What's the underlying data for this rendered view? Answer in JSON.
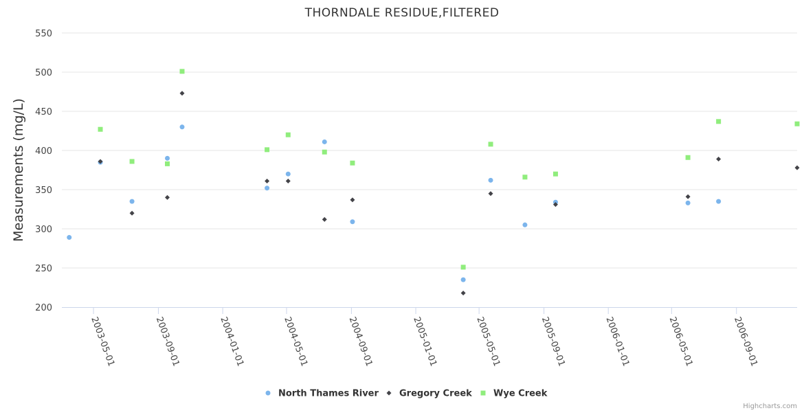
{
  "chart_data": {
    "type": "scatter",
    "title": "THORNDALE RESIDUE,FILTERED",
    "ylabel": "Measurements (mg/L)",
    "xlabel": "",
    "ylim": [
      200,
      550
    ],
    "yticks": [
      200,
      250,
      300,
      350,
      400,
      450,
      500,
      550
    ],
    "xlim": [
      "2003-03-02",
      "2006-12-25"
    ],
    "xticks": [
      "2003-05-01",
      "2003-09-01",
      "2004-01-01",
      "2004-05-01",
      "2004-09-01",
      "2005-01-01",
      "2005-05-01",
      "2005-09-01",
      "2006-01-01",
      "2006-05-01",
      "2006-09-01"
    ],
    "grid": true,
    "legend_position": "bottom-center",
    "series": [
      {
        "name": "North Thames River",
        "color": "#7cb5ec",
        "marker": "circle",
        "points": [
          {
            "x": "2003-03-16",
            "y": 289
          },
          {
            "x": "2003-05-14",
            "y": 385
          },
          {
            "x": "2003-07-13",
            "y": 335
          },
          {
            "x": "2003-09-18",
            "y": 390
          },
          {
            "x": "2003-10-16",
            "y": 430
          },
          {
            "x": "2004-03-25",
            "y": 352
          },
          {
            "x": "2004-05-04",
            "y": 370
          },
          {
            "x": "2004-07-12",
            "y": 411
          },
          {
            "x": "2004-09-03",
            "y": 309
          },
          {
            "x": "2005-04-01",
            "y": 235
          },
          {
            "x": "2005-05-23",
            "y": 362
          },
          {
            "x": "2005-07-27",
            "y": 305
          },
          {
            "x": "2005-09-23",
            "y": 334
          },
          {
            "x": "2006-06-01",
            "y": 333
          },
          {
            "x": "2006-07-29",
            "y": 335
          }
        ]
      },
      {
        "name": "Gregory Creek",
        "color": "#434348",
        "marker": "diamond",
        "points": [
          {
            "x": "2003-05-14",
            "y": 386
          },
          {
            "x": "2003-07-13",
            "y": 320
          },
          {
            "x": "2003-09-18",
            "y": 340
          },
          {
            "x": "2003-10-16",
            "y": 473
          },
          {
            "x": "2004-03-25",
            "y": 361
          },
          {
            "x": "2004-05-04",
            "y": 361
          },
          {
            "x": "2004-07-12",
            "y": 312
          },
          {
            "x": "2004-09-03",
            "y": 337
          },
          {
            "x": "2005-04-01",
            "y": 218
          },
          {
            "x": "2005-05-23",
            "y": 345
          },
          {
            "x": "2005-09-23",
            "y": 331
          },
          {
            "x": "2006-06-01",
            "y": 341
          },
          {
            "x": "2006-07-29",
            "y": 389
          },
          {
            "x": "2006-12-25",
            "y": 378
          }
        ]
      },
      {
        "name": "Wye Creek",
        "color": "#90ed7d",
        "marker": "square",
        "points": [
          {
            "x": "2003-05-14",
            "y": 427
          },
          {
            "x": "2003-07-13",
            "y": 386
          },
          {
            "x": "2003-09-18",
            "y": 383
          },
          {
            "x": "2003-10-16",
            "y": 501
          },
          {
            "x": "2004-03-25",
            "y": 401
          },
          {
            "x": "2004-05-04",
            "y": 420
          },
          {
            "x": "2004-07-12",
            "y": 398
          },
          {
            "x": "2004-09-03",
            "y": 384
          },
          {
            "x": "2005-04-01",
            "y": 251
          },
          {
            "x": "2005-05-23",
            "y": 408
          },
          {
            "x": "2005-07-27",
            "y": 366
          },
          {
            "x": "2005-09-23",
            "y": 370
          },
          {
            "x": "2006-06-01",
            "y": 391
          },
          {
            "x": "2006-07-29",
            "y": 437
          },
          {
            "x": "2006-12-25",
            "y": 434
          }
        ]
      }
    ]
  },
  "credits": "Highcharts.com"
}
